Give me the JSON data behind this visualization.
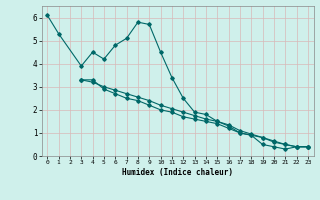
{
  "xlabel": "Humidex (Indice chaleur)",
  "bg_color": "#cff0eb",
  "grid_color": "#a8d8d0",
  "line_color": "#006868",
  "xlim": [
    -0.5,
    23.5
  ],
  "ylim": [
    0,
    6.5
  ],
  "xticks": [
    0,
    1,
    2,
    3,
    4,
    5,
    6,
    7,
    8,
    9,
    10,
    11,
    12,
    13,
    14,
    15,
    16,
    17,
    18,
    19,
    20,
    21,
    22,
    23
  ],
  "yticks": [
    0,
    1,
    2,
    3,
    4,
    5,
    6
  ],
  "series": [
    {
      "x": [
        0,
        1,
        3,
        4,
        5,
        6,
        7,
        8,
        9,
        10,
        11,
        12,
        13,
        14,
        15,
        16,
        17,
        18,
        19,
        20,
        21,
        22,
        23
      ],
      "y": [
        6.1,
        5.3,
        3.9,
        4.5,
        4.2,
        4.8,
        5.1,
        5.8,
        5.7,
        4.5,
        3.4,
        2.5,
        1.9,
        1.8,
        1.5,
        1.3,
        1.0,
        0.9,
        0.5,
        0.4,
        0.3,
        0.4,
        0.4
      ]
    },
    {
      "x": [
        3,
        4,
        5,
        6,
        7,
        8,
        9,
        10,
        11,
        12,
        13,
        14,
        15,
        16,
        17,
        18,
        19,
        20,
        21,
        22,
        23
      ],
      "y": [
        3.3,
        3.3,
        2.9,
        2.7,
        2.5,
        2.4,
        2.2,
        2.0,
        1.9,
        1.7,
        1.6,
        1.5,
        1.4,
        1.2,
        1.0,
        0.9,
        0.8,
        0.6,
        0.5,
        0.4,
        0.4
      ]
    },
    {
      "x": [
        3,
        4,
        5,
        6,
        7,
        8,
        9,
        10,
        11,
        12,
        13,
        14,
        15,
        16,
        17,
        18,
        19,
        20,
        21,
        22,
        23
      ],
      "y": [
        3.3,
        3.2,
        3.0,
        2.85,
        2.7,
        2.55,
        2.4,
        2.2,
        2.05,
        1.9,
        1.75,
        1.6,
        1.5,
        1.35,
        1.1,
        0.95,
        0.8,
        0.65,
        0.5,
        0.4,
        0.4
      ]
    }
  ]
}
